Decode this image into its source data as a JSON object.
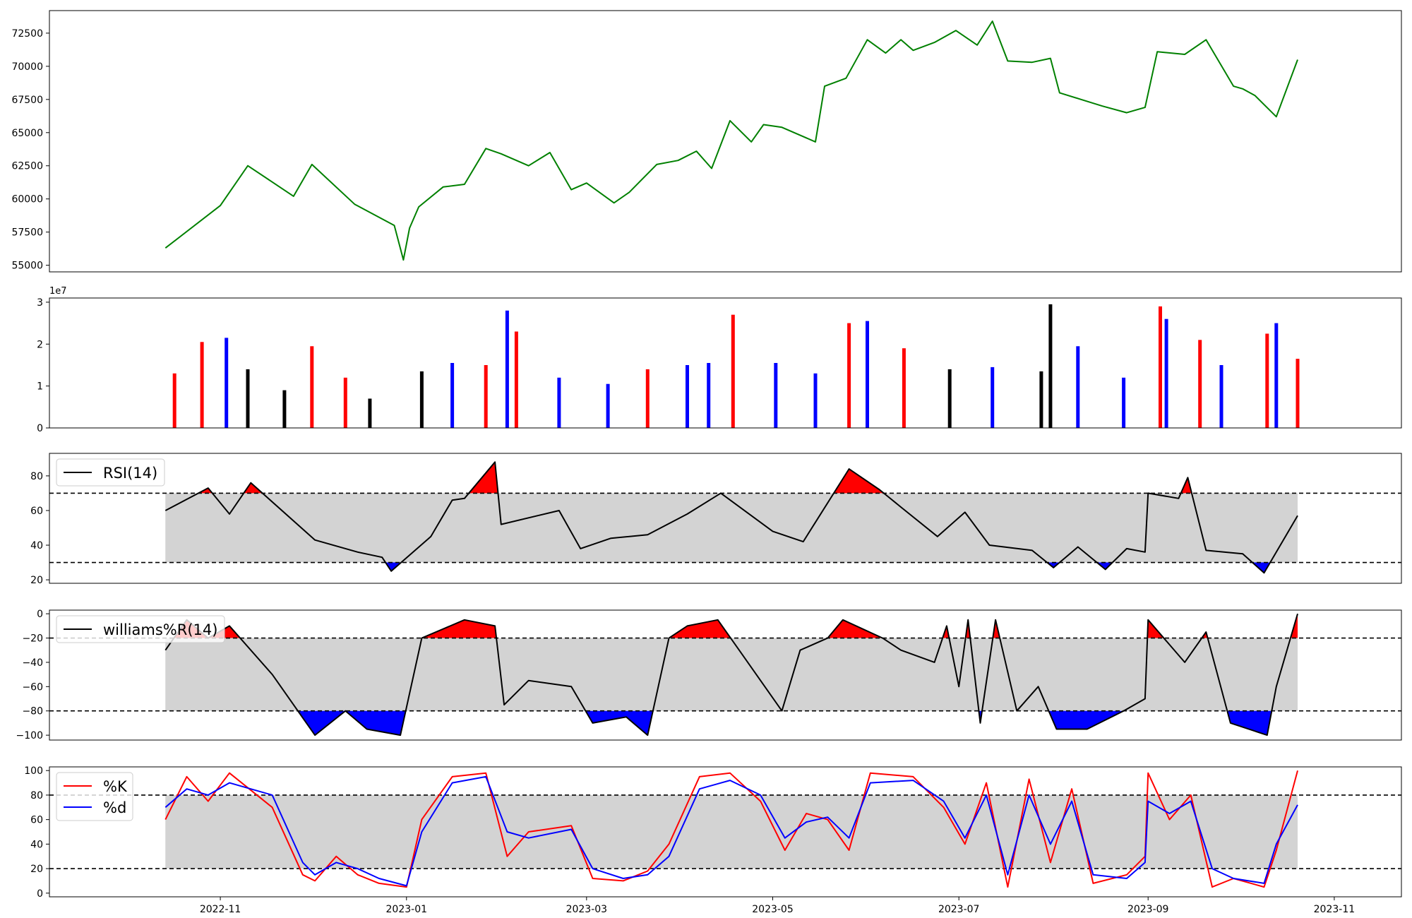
{
  "x_axis": {
    "start": "2022-10-14",
    "end": "2023-10-20",
    "tick_labels": [
      "2022-11",
      "2023-01",
      "2023-03",
      "2023-05",
      "2023-07",
      "2023-09",
      "2023-11"
    ],
    "tick_dates": [
      "2022-11-01",
      "2023-01-01",
      "2023-03-01",
      "2023-05-01",
      "2023-07-01",
      "2023-09-01",
      "2023-11-01"
    ]
  },
  "chart_data": [
    {
      "id": "price",
      "type": "line",
      "title": "",
      "ylim": [
        54500,
        74200
      ],
      "yticks": [
        55000,
        57500,
        60000,
        62500,
        65000,
        67500,
        70000,
        72500
      ],
      "ytick_labels": [
        "55000",
        "57500",
        "60000",
        "62500",
        "65000",
        "67500",
        "70000",
        "72500"
      ],
      "color": "#008000",
      "series": [
        {
          "x": [
            "2022-10-14",
            "2022-11-01",
            "2022-11-10",
            "2022-11-25",
            "2022-12-01",
            "2022-12-15",
            "2022-12-28",
            "2022-12-31",
            "2023-01-02",
            "2023-01-05",
            "2023-01-13",
            "2023-01-20",
            "2023-01-27",
            "2023-02-01",
            "2023-02-10",
            "2023-02-17",
            "2023-02-24",
            "2023-03-01",
            "2023-03-10",
            "2023-03-15",
            "2023-03-24",
            "2023-03-31",
            "2023-04-06",
            "2023-04-11",
            "2023-04-17",
            "2023-04-24",
            "2023-04-28",
            "2023-05-04",
            "2023-05-15",
            "2023-05-18",
            "2023-05-25",
            "2023-06-01",
            "2023-06-07",
            "2023-06-12",
            "2023-06-16",
            "2023-06-23",
            "2023-06-30",
            "2023-07-07",
            "2023-07-12",
            "2023-07-17",
            "2023-07-25",
            "2023-07-31",
            "2023-08-03",
            "2023-08-10",
            "2023-08-17",
            "2023-08-25",
            "2023-08-31",
            "2023-09-04",
            "2023-09-13",
            "2023-09-20",
            "2023-09-29",
            "2023-10-02",
            "2023-10-06",
            "2023-10-13",
            "2023-10-20"
          ],
          "values": [
            56300,
            59500,
            62500,
            60200,
            62600,
            59600,
            58000,
            55400,
            57800,
            59400,
            60900,
            61100,
            63800,
            63400,
            62500,
            63500,
            60700,
            61200,
            59700,
            60500,
            62600,
            62900,
            63600,
            62300,
            65900,
            64300,
            65600,
            65400,
            64300,
            68500,
            69100,
            72000,
            71000,
            72000,
            71200,
            71800,
            72700,
            71600,
            73400,
            70400,
            70300,
            70600,
            68000,
            67500,
            67000,
            66500,
            66900,
            71100,
            70900,
            72000,
            68500,
            68300,
            67800,
            66200,
            70500
          ]
        }
      ]
    },
    {
      "id": "volume",
      "type": "bar",
      "title": "",
      "ylim": [
        0,
        31000000
      ],
      "yticks": [
        0,
        10000000,
        20000000,
        30000000
      ],
      "ytick_labels": [
        "0",
        "1",
        "2",
        "3"
      ],
      "scale_label": "1e7",
      "colors": {
        "up": "#ff0000",
        "down": "#0000ff",
        "flat": "#000000"
      },
      "series": [
        {
          "x": [
            "2022-10-17",
            "2022-10-26",
            "2022-11-03",
            "2022-11-10",
            "2022-11-22",
            "2022-12-01",
            "2022-12-12",
            "2022-12-20",
            "2023-01-06",
            "2023-01-16",
            "2023-01-27",
            "2023-02-03",
            "2023-02-06",
            "2023-02-20",
            "2023-03-08",
            "2023-03-21",
            "2023-04-03",
            "2023-04-10",
            "2023-04-18",
            "2023-05-02",
            "2023-05-15",
            "2023-05-26",
            "2023-06-01",
            "2023-06-13",
            "2023-06-28",
            "2023-07-12",
            "2023-07-28",
            "2023-07-31",
            "2023-08-09",
            "2023-08-24",
            "2023-09-05",
            "2023-09-07",
            "2023-09-18",
            "2023-09-25",
            "2023-10-10",
            "2023-10-13",
            "2023-10-20"
          ],
          "values": [
            13000000,
            20500000,
            21500000,
            14000000,
            9000000,
            19500000,
            12000000,
            7000000,
            13500000,
            15500000,
            15000000,
            28000000,
            23000000,
            12000000,
            10500000,
            14000000,
            15000000,
            15500000,
            27000000,
            15500000,
            13000000,
            25000000,
            25500000,
            19000000,
            14000000,
            14500000,
            13500000,
            29500000,
            19500000,
            12000000,
            29000000,
            26000000,
            21000000,
            15000000,
            22500000,
            25000000,
            16500000
          ],
          "dir": [
            "up",
            "up",
            "down",
            "flat",
            "flat",
            "up",
            "up",
            "flat",
            "flat",
            "down",
            "up",
            "down",
            "up",
            "down",
            "down",
            "up",
            "down",
            "down",
            "up",
            "down",
            "down",
            "up",
            "down",
            "up",
            "flat",
            "down",
            "flat",
            "flat",
            "down",
            "down",
            "up",
            "down",
            "up",
            "down",
            "up",
            "down",
            "up"
          ]
        }
      ]
    },
    {
      "id": "rsi",
      "type": "line",
      "title": "",
      "ylim": [
        18,
        93
      ],
      "yticks": [
        20,
        40,
        60,
        80
      ],
      "ytick_labels": [
        "20",
        "40",
        "60",
        "80"
      ],
      "upper": 70,
      "lower": 30,
      "legend": [
        {
          "label": "RSI(14)",
          "color": "#000000"
        }
      ],
      "series": [
        {
          "name": "RSI(14)",
          "x": [
            "2022-10-14",
            "2022-10-28",
            "2022-11-04",
            "2022-11-11",
            "2022-12-02",
            "2022-12-16",
            "2022-12-24",
            "2022-12-27",
            "2023-01-09",
            "2023-01-16",
            "2023-01-20",
            "2023-01-30",
            "2023-02-01",
            "2023-02-20",
            "2023-02-27",
            "2023-03-09",
            "2023-03-21",
            "2023-04-03",
            "2023-04-14",
            "2023-05-01",
            "2023-05-11",
            "2023-05-16",
            "2023-05-26",
            "2023-06-05",
            "2023-06-12",
            "2023-06-24",
            "2023-07-03",
            "2023-07-11",
            "2023-07-25",
            "2023-08-01",
            "2023-08-09",
            "2023-08-18",
            "2023-08-25",
            "2023-08-31",
            "2023-09-01",
            "2023-09-11",
            "2023-09-14",
            "2023-09-20",
            "2023-10-02",
            "2023-10-09",
            "2023-10-20"
          ],
          "values": [
            60,
            73,
            58,
            76,
            43,
            36,
            33,
            25,
            45,
            66,
            67,
            88,
            52,
            60,
            38,
            44,
            46,
            58,
            70,
            48,
            42,
            56,
            84,
            72,
            62,
            45,
            59,
            40,
            37,
            27,
            39,
            26,
            38,
            36,
            70,
            67,
            79,
            37,
            35,
            24,
            57
          ]
        }
      ]
    },
    {
      "id": "williams",
      "type": "line",
      "title": "",
      "ylim": [
        -104,
        3
      ],
      "yticks": [
        -100,
        -80,
        -60,
        -40,
        -20,
        0
      ],
      "ytick_labels": [
        "−100",
        "−80",
        "−60",
        "−40",
        "−20",
        "0"
      ],
      "upper": -20,
      "lower": -80,
      "legend": [
        {
          "label": "williams%R(14)",
          "color": "#000000"
        }
      ],
      "series": [
        {
          "name": "williams%R(14)",
          "x": [
            "2022-10-14",
            "2022-10-21",
            "2022-10-28",
            "2022-11-04",
            "2022-11-18",
            "2022-12-02",
            "2022-12-12",
            "2022-12-19",
            "2022-12-30",
            "2023-01-06",
            "2023-01-20",
            "2023-01-30",
            "2023-02-02",
            "2023-02-10",
            "2023-02-24",
            "2023-03-03",
            "2023-03-14",
            "2023-03-21",
            "2023-03-28",
            "2023-04-03",
            "2023-04-13",
            "2023-04-20",
            "2023-05-04",
            "2023-05-10",
            "2023-05-19",
            "2023-05-24",
            "2023-06-06",
            "2023-06-12",
            "2023-06-23",
            "2023-06-27",
            "2023-07-01",
            "2023-07-04",
            "2023-07-08",
            "2023-07-13",
            "2023-07-20",
            "2023-07-27",
            "2023-08-02",
            "2023-08-12",
            "2023-08-24",
            "2023-08-31",
            "2023-09-01",
            "2023-09-13",
            "2023-09-20",
            "2023-09-28",
            "2023-10-10",
            "2023-10-13",
            "2023-10-20"
          ],
          "values": [
            -30,
            -5,
            -20,
            -10,
            -50,
            -100,
            -80,
            -95,
            -100,
            -20,
            -5,
            -10,
            -75,
            -55,
            -60,
            -90,
            -85,
            -100,
            -20,
            -10,
            -5,
            -30,
            -80,
            -30,
            -20,
            -5,
            -20,
            -30,
            -40,
            -10,
            -60,
            -5,
            -90,
            -5,
            -80,
            -60,
            -95,
            -95,
            -80,
            -70,
            -5,
            -40,
            -15,
            -90,
            -100,
            -60,
            0
          ]
        }
      ]
    },
    {
      "id": "stochastic",
      "type": "line",
      "title": "",
      "ylim": [
        -3,
        103
      ],
      "yticks": [
        0,
        20,
        40,
        60,
        80,
        100
      ],
      "ytick_labels": [
        "0",
        "20",
        "40",
        "60",
        "80",
        "100"
      ],
      "upper": 80,
      "lower": 20,
      "legend": [
        {
          "label": "%K",
          "color": "#ff0000"
        },
        {
          "label": "%d",
          "color": "#0000ff"
        }
      ],
      "series": [
        {
          "name": "%K",
          "color": "#ff0000",
          "x": [
            "2022-10-14",
            "2022-10-21",
            "2022-10-28",
            "2022-11-04",
            "2022-11-18",
            "2022-11-28",
            "2022-12-02",
            "2022-12-09",
            "2022-12-16",
            "2022-12-23",
            "2023-01-01",
            "2023-01-06",
            "2023-01-16",
            "2023-01-27",
            "2023-02-03",
            "2023-02-10",
            "2023-02-24",
            "2023-03-03",
            "2023-03-13",
            "2023-03-21",
            "2023-03-28",
            "2023-04-07",
            "2023-04-17",
            "2023-04-27",
            "2023-05-05",
            "2023-05-12",
            "2023-05-19",
            "2023-05-26",
            "2023-06-02",
            "2023-06-16",
            "2023-06-26",
            "2023-07-03",
            "2023-07-10",
            "2023-07-17",
            "2023-07-24",
            "2023-07-31",
            "2023-08-07",
            "2023-08-14",
            "2023-08-25",
            "2023-08-31",
            "2023-09-01",
            "2023-09-08",
            "2023-09-15",
            "2023-09-22",
            "2023-09-29",
            "2023-10-09",
            "2023-10-13",
            "2023-10-20"
          ],
          "values": [
            60,
            95,
            75,
            98,
            70,
            15,
            10,
            30,
            15,
            8,
            5,
            60,
            95,
            98,
            30,
            50,
            55,
            12,
            10,
            18,
            40,
            95,
            98,
            75,
            35,
            65,
            60,
            35,
            98,
            95,
            70,
            40,
            90,
            5,
            93,
            25,
            85,
            8,
            15,
            30,
            98,
            60,
            80,
            5,
            12,
            5,
            35,
            100
          ]
        },
        {
          "name": "%d",
          "color": "#0000ff",
          "x": [
            "2022-10-14",
            "2022-10-21",
            "2022-10-28",
            "2022-11-04",
            "2022-11-18",
            "2022-11-28",
            "2022-12-02",
            "2022-12-09",
            "2022-12-16",
            "2022-12-23",
            "2023-01-01",
            "2023-01-06",
            "2023-01-16",
            "2023-01-27",
            "2023-02-03",
            "2023-02-10",
            "2023-02-24",
            "2023-03-03",
            "2023-03-13",
            "2023-03-21",
            "2023-03-28",
            "2023-04-07",
            "2023-04-17",
            "2023-04-27",
            "2023-05-05",
            "2023-05-12",
            "2023-05-19",
            "2023-05-26",
            "2023-06-02",
            "2023-06-16",
            "2023-06-26",
            "2023-07-03",
            "2023-07-10",
            "2023-07-17",
            "2023-07-24",
            "2023-07-31",
            "2023-08-07",
            "2023-08-14",
            "2023-08-25",
            "2023-08-31",
            "2023-09-01",
            "2023-09-08",
            "2023-09-15",
            "2023-09-22",
            "2023-09-29",
            "2023-10-09",
            "2023-10-13",
            "2023-10-20"
          ],
          "values": [
            70,
            85,
            80,
            90,
            80,
            25,
            15,
            25,
            20,
            12,
            6,
            50,
            90,
            95,
            50,
            45,
            52,
            20,
            12,
            15,
            30,
            85,
            92,
            80,
            45,
            58,
            62,
            45,
            90,
            92,
            75,
            45,
            80,
            15,
            80,
            40,
            75,
            15,
            12,
            25,
            75,
            65,
            75,
            20,
            12,
            8,
            40,
            72
          ]
        }
      ]
    }
  ]
}
